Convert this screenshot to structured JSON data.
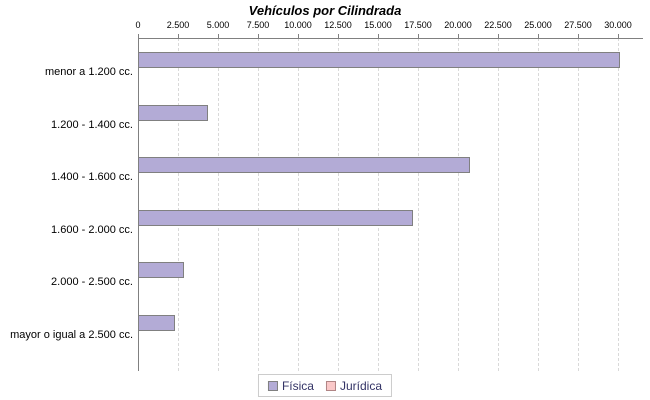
{
  "chart_data": {
    "type": "bar",
    "orientation": "horizontal",
    "title": "Vehículos por Cilindrada",
    "categories": [
      "menor a 1.200 cc.",
      "1.200 - 1.400 cc.",
      "1.400 - 1.600 cc.",
      "1.600 - 2.000 cc.",
      "2.000 - 2.500 cc.",
      "mayor o igual a 2.500 cc."
    ],
    "series": [
      {
        "name": "Física",
        "color": "#b3abd6",
        "border_color": "#808080",
        "values": [
          30100,
          4400,
          20750,
          17200,
          2900,
          2300
        ]
      },
      {
        "name": "Jurídica",
        "color": "#fac8c8",
        "border_color": "#b08585",
        "values": [
          0,
          0,
          0,
          0,
          0,
          0
        ]
      }
    ],
    "xlim": [
      0,
      30000
    ],
    "xticks": [
      "0",
      "2.500",
      "5.000",
      "7.500",
      "10.000",
      "12.500",
      "15.000",
      "17.500",
      "20.000",
      "22.500",
      "25.000",
      "27.500",
      "30.000"
    ],
    "xlabel": "",
    "ylabel": "",
    "grid": "vertical-dashed",
    "legend_position": "bottom",
    "style": {
      "axis_color": "#808080",
      "grid_color": "#d9d9d9",
      "tick_label_color": "#000000",
      "category_label_color": "#000000",
      "legend_text_color": "#333366",
      "legend_border_color": "#cccccc",
      "title_color": "#000000",
      "background_color": "#ffffff"
    }
  }
}
